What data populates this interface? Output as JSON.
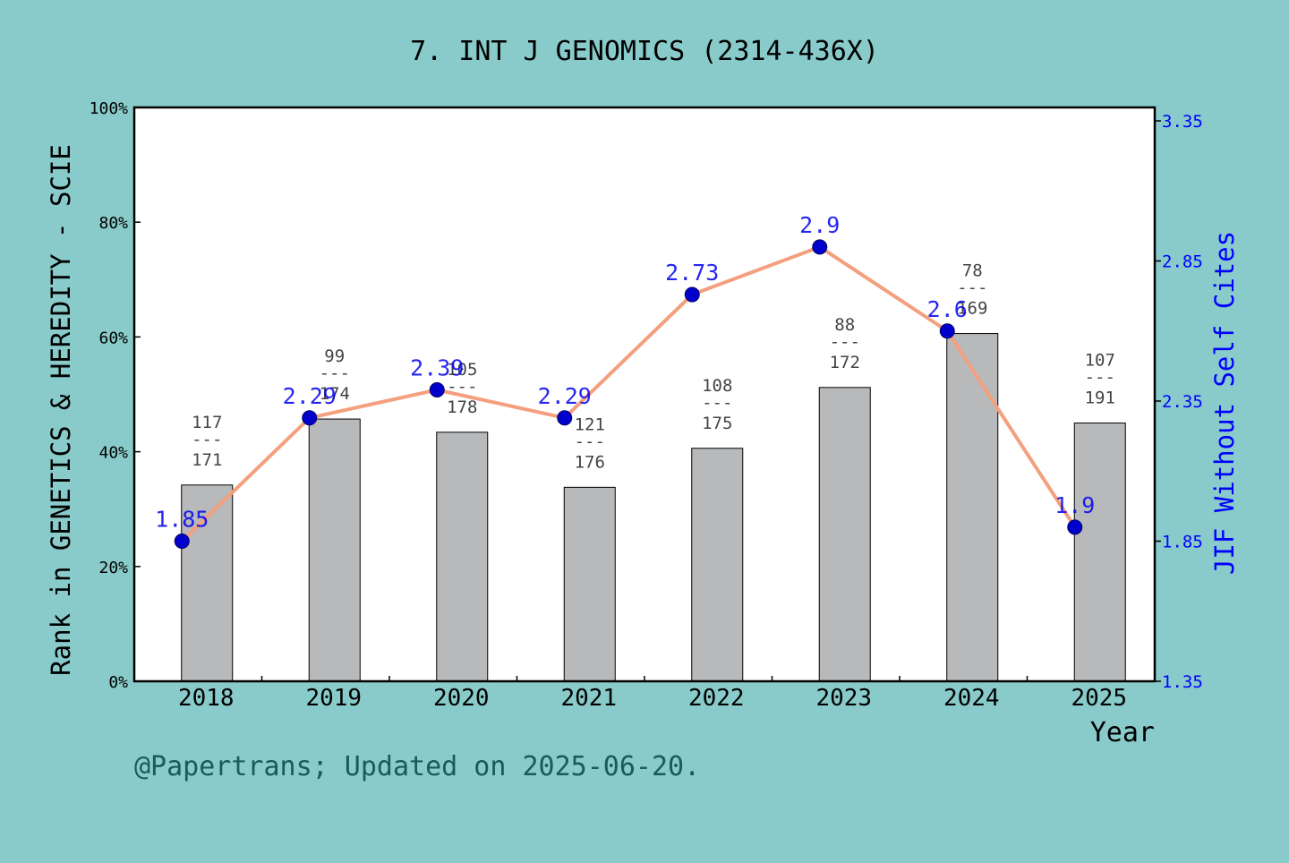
{
  "chart_data": {
    "type": "bar",
    "title": "7.  INT J GENOMICS (2314-436X)",
    "xlabel": "Year",
    "ylabel_left": "Rank in GENETICS & HEREDITY - SCIE",
    "ylabel_right": "JIF Without Self Cites",
    "categories": [
      "2018",
      "2019",
      "2020",
      "2021",
      "2022",
      "2023",
      "2024",
      "2025"
    ],
    "ylim_left": [
      0,
      100
    ],
    "left_ticks": [
      "0%",
      "20%",
      "40%",
      "60%",
      "80%",
      "100%"
    ],
    "left_tick_values": [
      0,
      20,
      40,
      60,
      80,
      100
    ],
    "ylim_right": [
      1.35,
      3.35
    ],
    "right_ticks": [
      "1.35",
      "1.85",
      "2.35",
      "2.85",
      "3.35"
    ],
    "right_tick_values": [
      1.35,
      1.85,
      2.35,
      2.85,
      3.35
    ],
    "series": [
      {
        "kind": "bar",
        "values": [
          34.2,
          45.7,
          43.4,
          33.8,
          40.6,
          51.2,
          60.6,
          45.0
        ],
        "rank": [
          "117",
          "99",
          "105",
          "121",
          "108",
          "88",
          "78",
          "107"
        ],
        "total": [
          "171",
          "174",
          "178",
          "176",
          "175",
          "172",
          "169",
          "191"
        ],
        "color": "#b8b9bb"
      },
      {
        "kind": "line",
        "values": [
          1.85,
          2.29,
          2.39,
          2.29,
          2.73,
          2.9,
          2.6,
          1.9
        ],
        "labels": [
          "1.85",
          "2.29",
          "2.39",
          "2.29",
          "2.73",
          "2.9",
          "2.6",
          "1.9"
        ],
        "line_color": "#f4a07e",
        "marker_color": "#0000cc"
      }
    ],
    "label_separator": "---",
    "grid": false,
    "legend": "none"
  },
  "footer": "@Papertrans; Updated on 2025-06-20.",
  "colors": {
    "background": "#88cbca",
    "plot_bg": "#ffffff",
    "right_axis": "#0000ff",
    "footer": "#1a5a58"
  }
}
